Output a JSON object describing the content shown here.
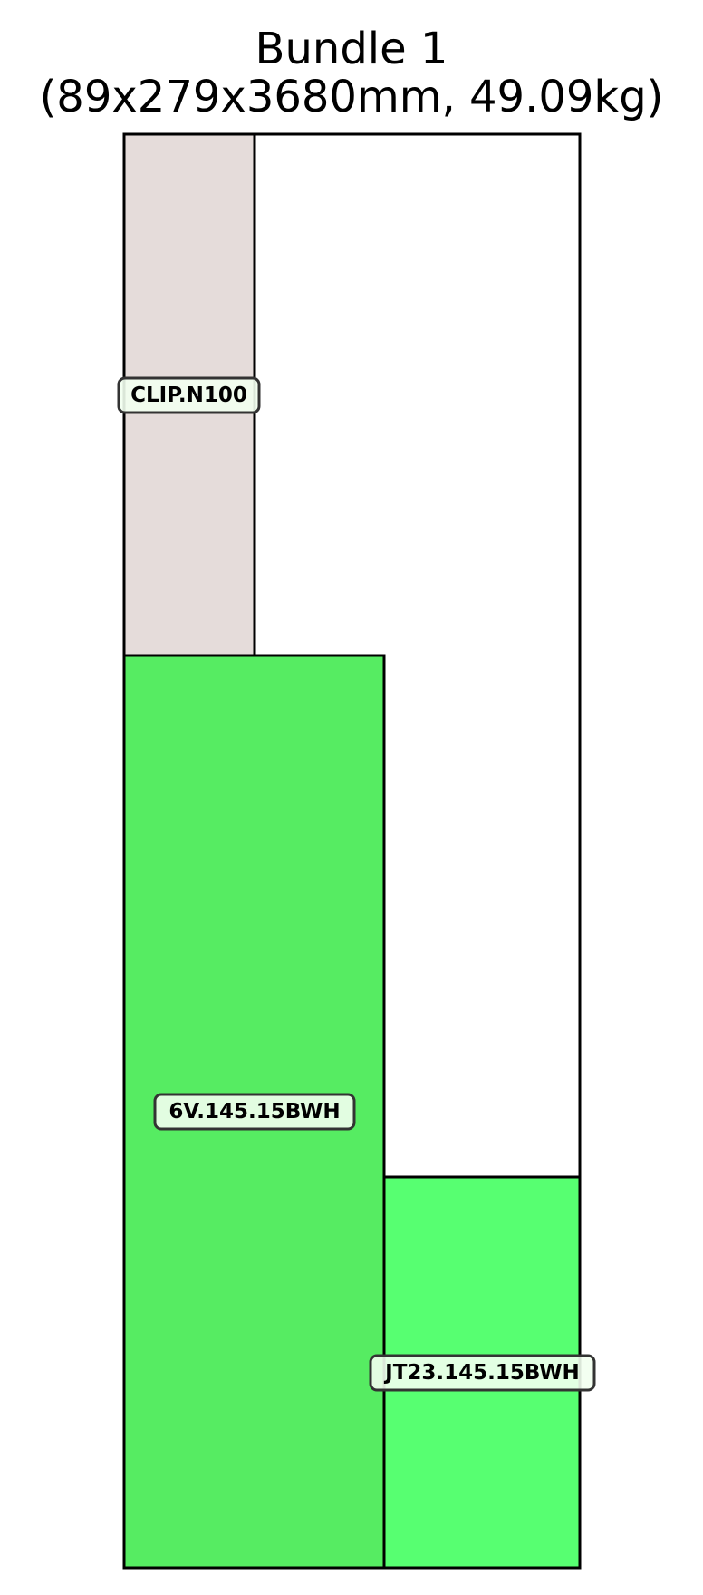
{
  "title": {
    "line1": "Bundle 1",
    "line2": "(89x279x3680mm, 49.09kg)"
  },
  "colors": {
    "outline": "#000000",
    "label_border": "#333333",
    "label_fill": "#f2fff0"
  },
  "pieces": [
    {
      "id": "clip",
      "label": "CLIP.N100",
      "fill": "#e5dcda"
    },
    {
      "id": "6v",
      "label": "6V.145.15BWH",
      "fill": "#56ec62"
    },
    {
      "id": "jt23",
      "label": "JT23.145.15BWH",
      "fill": "#57ff71"
    }
  ]
}
